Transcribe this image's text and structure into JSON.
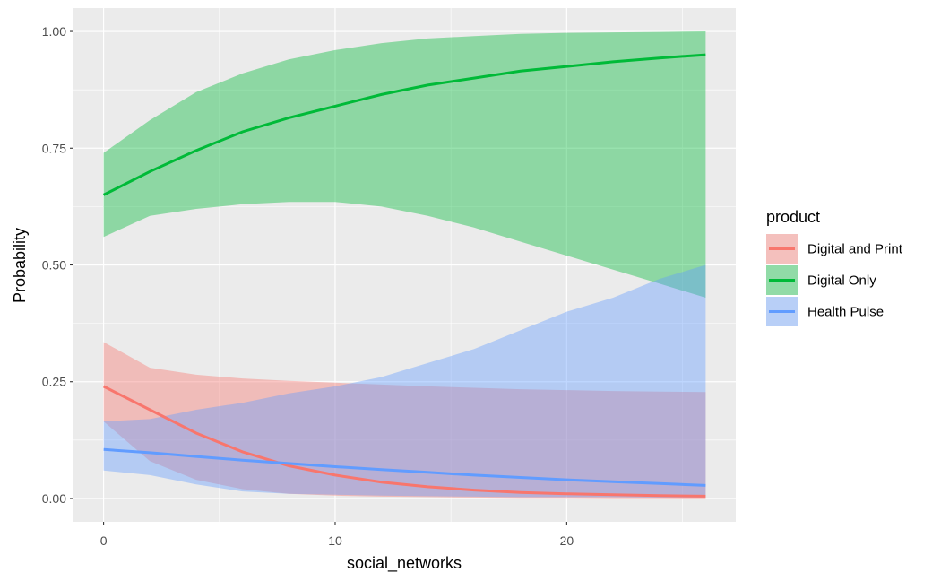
{
  "chart_data": {
    "type": "line",
    "xlabel": "social_networks",
    "ylabel": "Probability",
    "xlim": [
      -1.3,
      27.3
    ],
    "ylim": [
      -0.05,
      1.05
    ],
    "x_ticks": [
      0,
      10,
      20
    ],
    "x_tick_labels": [
      "0",
      "10",
      "20"
    ],
    "y_ticks": [
      0,
      0.25,
      0.5,
      0.75,
      1.0
    ],
    "y_tick_labels": [
      "0.00",
      "0.25",
      "0.50",
      "0.75",
      "1.00"
    ],
    "grid": true,
    "legend": {
      "title": "product",
      "position": "right"
    },
    "x": [
      0,
      2,
      4,
      6,
      8,
      10,
      12,
      14,
      16,
      18,
      20,
      22,
      24,
      26
    ],
    "series": [
      {
        "name": "Digital and Print",
        "color": "#F8766D",
        "values": [
          0.24,
          0.19,
          0.14,
          0.1,
          0.07,
          0.05,
          0.035,
          0.025,
          0.018,
          0.013,
          0.01,
          0.008,
          0.006,
          0.005
        ],
        "lower": [
          0.165,
          0.08,
          0.04,
          0.02,
          0.01,
          0.006,
          0.004,
          0.003,
          0.002,
          0.001,
          0.001,
          0.0005,
          0.0003,
          0.0002
        ],
        "upper": [
          0.335,
          0.28,
          0.265,
          0.257,
          0.252,
          0.248,
          0.244,
          0.24,
          0.237,
          0.234,
          0.232,
          0.23,
          0.229,
          0.228
        ]
      },
      {
        "name": "Digital Only",
        "color": "#00BA38",
        "values": [
          0.65,
          0.7,
          0.745,
          0.785,
          0.815,
          0.84,
          0.865,
          0.885,
          0.9,
          0.915,
          0.925,
          0.935,
          0.943,
          0.95
        ],
        "lower": [
          0.56,
          0.605,
          0.62,
          0.63,
          0.635,
          0.635,
          0.625,
          0.605,
          0.58,
          0.55,
          0.52,
          0.49,
          0.46,
          0.43
        ],
        "upper": [
          0.74,
          0.81,
          0.87,
          0.91,
          0.94,
          0.96,
          0.975,
          0.985,
          0.99,
          0.995,
          0.997,
          0.998,
          0.999,
          1.0
        ]
      },
      {
        "name": "Health Pulse",
        "color": "#619CFF",
        "values": [
          0.105,
          0.098,
          0.09,
          0.082,
          0.075,
          0.068,
          0.062,
          0.056,
          0.05,
          0.045,
          0.04,
          0.036,
          0.032,
          0.028
        ],
        "lower": [
          0.06,
          0.05,
          0.03,
          0.015,
          0.01,
          0.008,
          0.006,
          0.005,
          0.004,
          0.003,
          0.003,
          0.003,
          0.002,
          0.002
        ],
        "upper": [
          0.165,
          0.17,
          0.19,
          0.205,
          0.225,
          0.24,
          0.26,
          0.29,
          0.32,
          0.36,
          0.4,
          0.43,
          0.47,
          0.5
        ]
      }
    ]
  }
}
